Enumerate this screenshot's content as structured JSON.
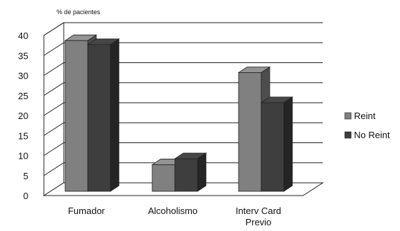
{
  "chart_data": {
    "type": "bar",
    "ylabel": "% de pacientes",
    "categories": [
      "Fumador",
      "Alcoholismo",
      "Interv Card Previo"
    ],
    "category_lines": [
      [
        "Fumador"
      ],
      [
        "Alcoholismo"
      ],
      [
        "Interv Card",
        "Previo"
      ]
    ],
    "series": [
      {
        "name": "Reint",
        "values": [
          38,
          7,
          30
        ],
        "color": "#808080"
      },
      {
        "name": "No Reint",
        "values": [
          37,
          8.5,
          22.5
        ],
        "color": "#3e3e3e"
      }
    ],
    "ylim": [
      0,
      40
    ],
    "yticks": [
      0,
      5,
      10,
      15,
      20,
      25,
      30,
      35,
      40
    ],
    "grid": true,
    "legend": "right",
    "three_d": true
  }
}
